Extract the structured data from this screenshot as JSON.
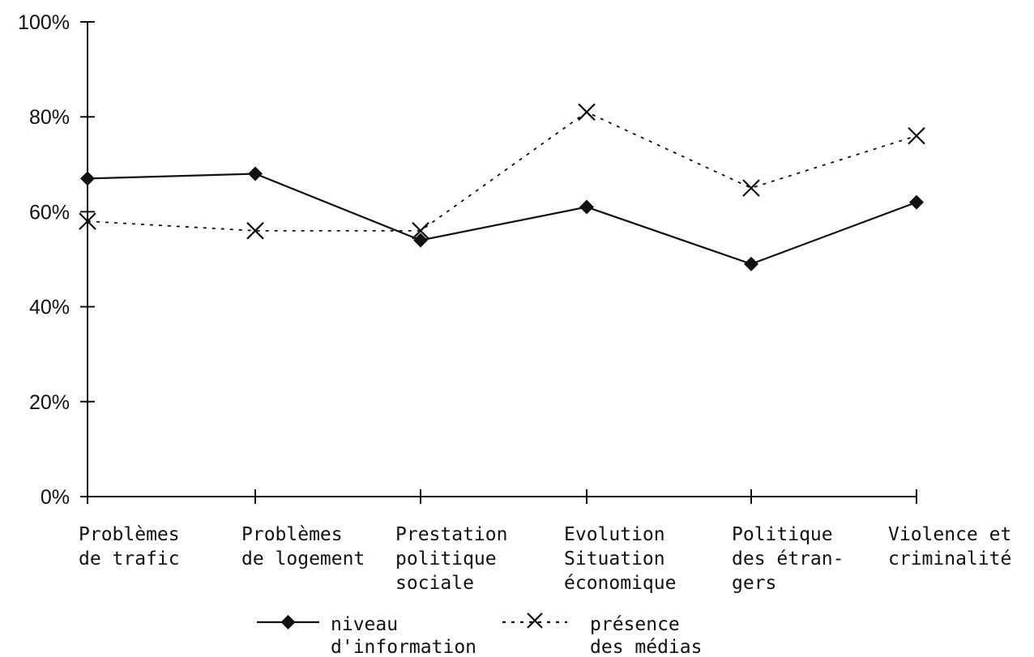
{
  "chart_data": {
    "type": "line",
    "categories": [
      [
        "Problèmes",
        "de trafic"
      ],
      [
        "Problèmes",
        "de logement"
      ],
      [
        "Prestation",
        "politique",
        "sociale"
      ],
      [
        "Evolution",
        "Situation",
        "économique"
      ],
      [
        "Politique",
        "des étran-",
        "gers"
      ],
      [
        "Violence et",
        "criminalité"
      ]
    ],
    "series": [
      {
        "name": [
          "niveau",
          "d'information"
        ],
        "values": [
          67,
          68,
          54,
          61,
          49,
          62
        ],
        "marker": "diamond",
        "line": "solid",
        "color": "#111111"
      },
      {
        "name": [
          "présence",
          "des médias"
        ],
        "values": [
          58,
          56,
          56,
          81,
          65,
          76
        ],
        "marker": "x",
        "line": "dotted",
        "color": "#111111"
      }
    ],
    "ylim": [
      0,
      100
    ],
    "yticks": [
      0,
      20,
      40,
      60,
      80,
      100
    ],
    "ytick_labels": [
      "0%",
      "20%",
      "40%",
      "60%",
      "80%",
      "100%"
    ],
    "grid": false,
    "legend_position": "bottom"
  }
}
